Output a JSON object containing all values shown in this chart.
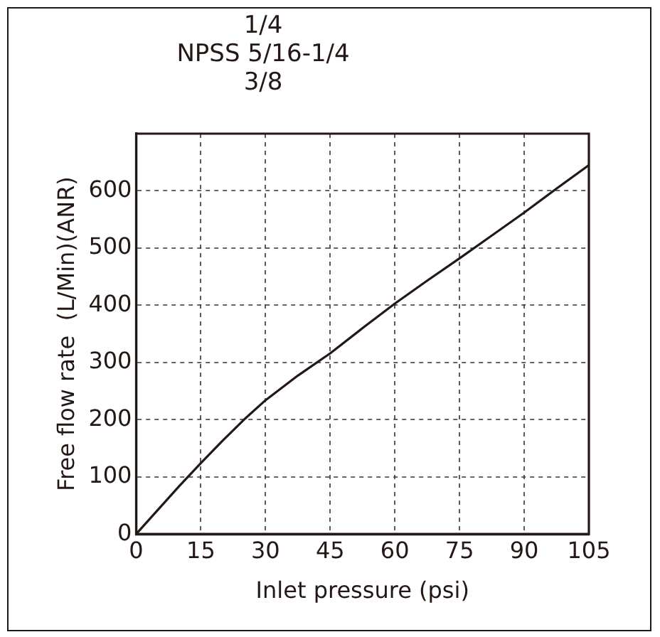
{
  "chart_data": {
    "type": "line",
    "title": "1/4\nNPSS 5/16-1/4\n3/8",
    "xlabel": "Inlet pressure (psi)",
    "ylabel": "Free flow rate  (L/Min)(ANR)",
    "x": [
      0,
      5,
      10,
      15,
      20,
      25,
      30,
      37.5,
      45,
      52.5,
      60,
      67.5,
      75,
      82.5,
      90,
      97.5,
      105
    ],
    "series": [
      {
        "color": "#231815",
        "values": [
          0,
          42,
          84,
          124,
          163,
          200,
          234,
          277,
          316,
          360,
          403,
          443,
          482,
          522,
          562,
          604,
          645
        ]
      }
    ],
    "xlim": [
      0,
      105
    ],
    "xticks": [
      0,
      15,
      30,
      45,
      60,
      75,
      90,
      105
    ],
    "ylim": [
      0,
      700
    ],
    "yticks": [
      0,
      100,
      200,
      300,
      400,
      500,
      600,
      {
        "value": 700,
        "label": null
      }
    ],
    "grid": true,
    "legend": false,
    "marker": "none",
    "line_style": "solid"
  }
}
